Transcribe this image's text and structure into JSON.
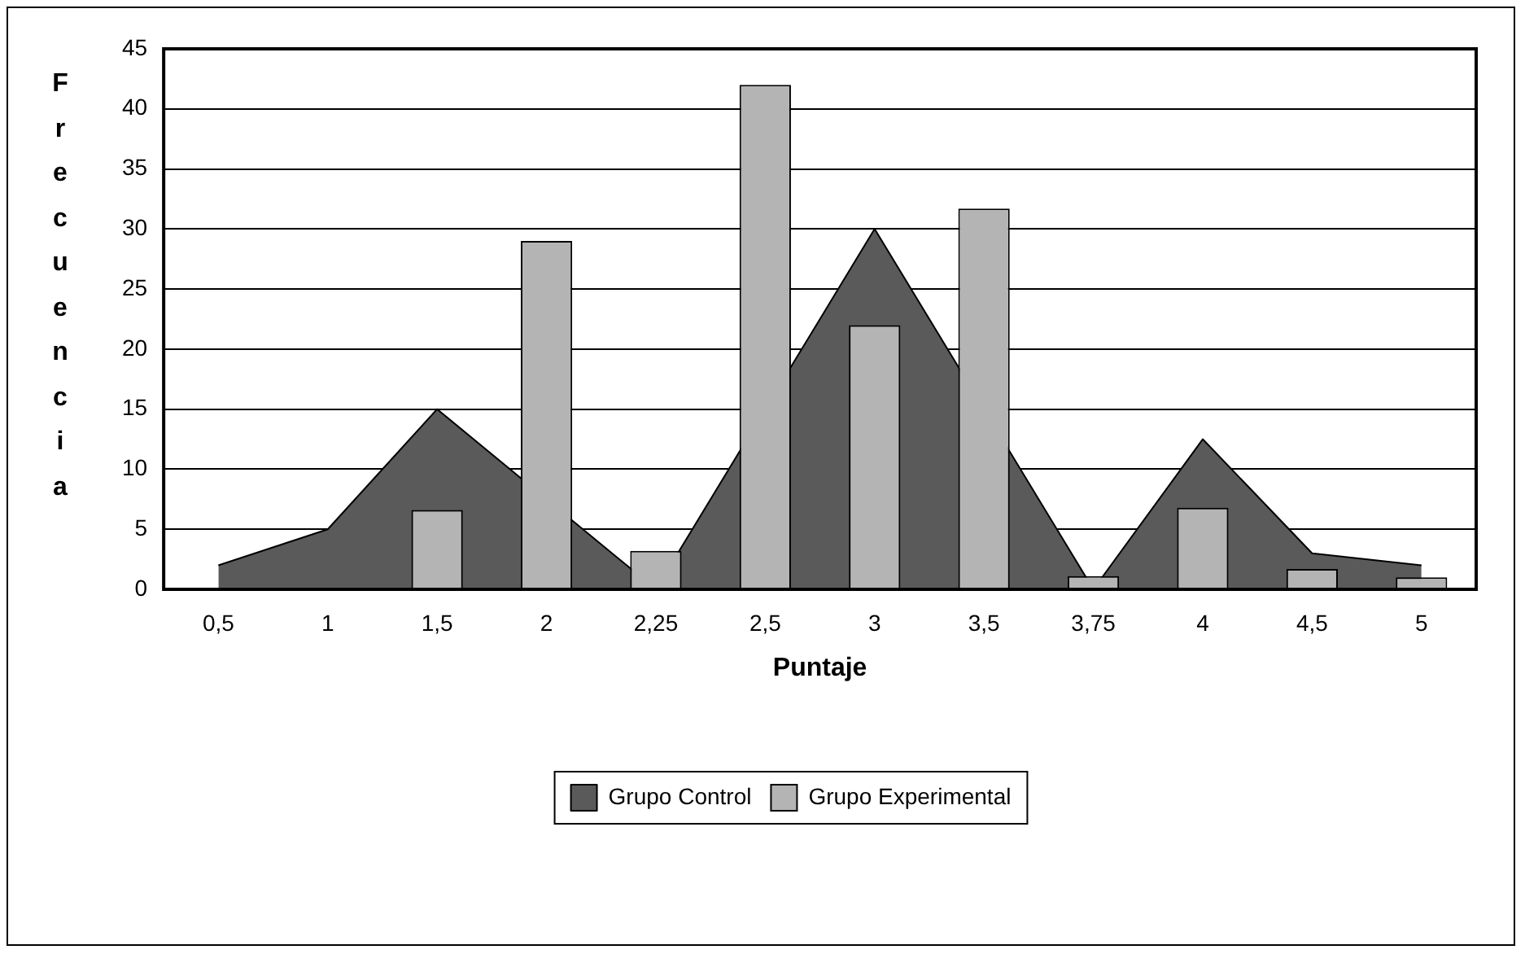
{
  "chart_data": {
    "type": "bar",
    "xlabel": "Puntaje",
    "ylabel": "Frecuencia",
    "categories": [
      "0,5",
      "1",
      "1,5",
      "2",
      "2,25",
      "2,5",
      "3",
      "3,5",
      "3,75",
      "4",
      "4,5",
      "5"
    ],
    "series": [
      {
        "name": "Grupo Control",
        "type": "area",
        "color": "#5a5a5a",
        "values": [
          2,
          5,
          15,
          null,
          0,
          null,
          30,
          null,
          0,
          12.5,
          3,
          2
        ]
      },
      {
        "name": "Grupo Experimental",
        "color": "#b4b4b4",
        "values": [
          0,
          0,
          6.6,
          29,
          3.2,
          42,
          22,
          31.7,
          1.1,
          6.8,
          1.7,
          1
        ]
      }
    ],
    "ylim": [
      0,
      45
    ],
    "yticks": [
      0,
      5,
      10,
      15,
      20,
      25,
      30,
      35,
      40,
      45
    ],
    "grid": "y",
    "legend": "bottom"
  }
}
